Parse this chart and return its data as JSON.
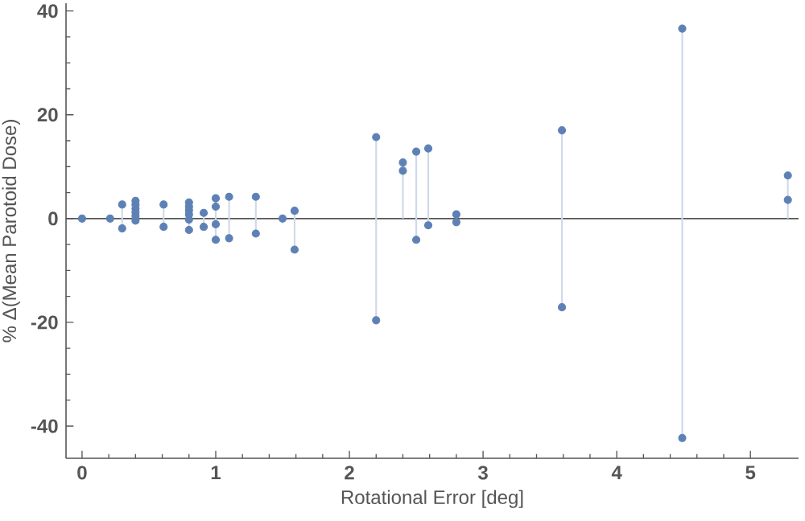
{
  "chart_data": {
    "type": "scatter",
    "xlabel": "Rotational Error [deg]",
    "ylabel": "% Δ(Mean Parotoid Dose)",
    "xlim": [
      -0.12,
      5.36
    ],
    "ylim": [
      -46.2,
      41.5
    ],
    "xticks": [
      0,
      1,
      2,
      3,
      4,
      5
    ],
    "yticks": [
      -40,
      -20,
      0,
      20,
      40
    ],
    "grid": false,
    "ref_lines": [
      {
        "axis": "y",
        "value": 0,
        "color": "#555555"
      }
    ],
    "series": [
      {
        "color": "#5e81b5",
        "x": [
          0,
          0.21,
          0.3,
          0.3,
          0.4,
          0.4,
          0.4,
          0.4,
          0.4,
          0.4,
          0.61,
          0.61,
          0.8,
          0.8,
          0.8,
          0.8,
          0.8,
          0.8,
          0.91,
          0.91,
          1.0,
          1.0,
          1.0,
          1.0,
          1.1,
          1.1,
          1.3,
          1.3,
          1.5,
          1.59,
          1.59,
          2.2,
          2.2,
          2.4,
          2.4,
          2.5,
          2.5,
          2.59,
          2.59,
          2.8,
          2.8,
          3.59,
          3.59,
          4.49,
          4.49,
          5.28,
          5.28
        ],
        "values": [
          0,
          0,
          2.7,
          -1.9,
          3.4,
          2.7,
          1.9,
          1.2,
          0.5,
          -0.4,
          2.7,
          -1.6,
          3.1,
          2.3,
          1.6,
          0.8,
          -0.2,
          -2.2,
          1.1,
          -1.6,
          3.9,
          2.3,
          -1.1,
          -4.1,
          4.2,
          -3.8,
          4.2,
          -2.9,
          0,
          1.5,
          -6.0,
          15.7,
          -19.6,
          10.8,
          9.2,
          12.9,
          -4.1,
          13.5,
          -1.3,
          0.8,
          -0.7,
          17.0,
          -17.1,
          36.6,
          -42.3,
          8.3,
          3.6
        ],
        "errors": [
          null,
          null,
          [
            -1.9,
            2.7
          ],
          null,
          [
            -0.4,
            3.4
          ],
          null,
          null,
          null,
          null,
          null,
          [
            -1.6,
            2.7
          ],
          null,
          [
            -2.2,
            3.1
          ],
          null,
          null,
          null,
          null,
          null,
          [
            -1.6,
            1.1
          ],
          null,
          [
            -4.1,
            3.9
          ],
          null,
          null,
          null,
          [
            -3.8,
            4.2
          ],
          null,
          [
            -2.9,
            4.2
          ],
          null,
          null,
          [
            -6.0,
            1.5
          ],
          null,
          [
            -19.6,
            15.7
          ],
          null,
          [
            0,
            10.8
          ],
          null,
          [
            -4.1,
            12.9
          ],
          null,
          [
            -1.3,
            13.5
          ],
          null,
          [
            -0.7,
            0.8
          ],
          null,
          [
            -17.1,
            17.0
          ],
          null,
          [
            -42.3,
            36.6
          ],
          null,
          [
            0,
            8.3
          ],
          null
        ]
      }
    ]
  }
}
